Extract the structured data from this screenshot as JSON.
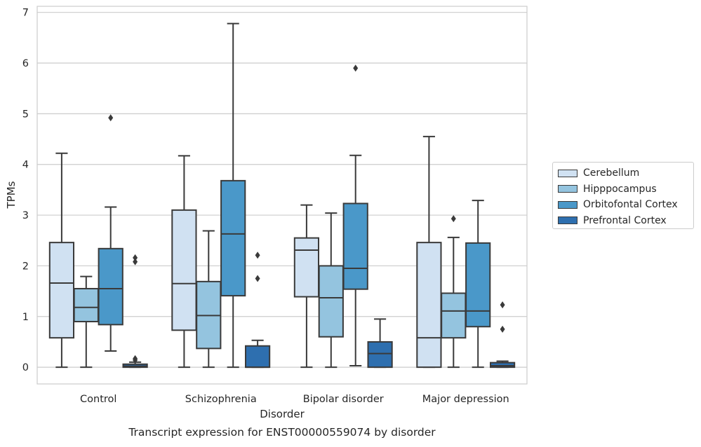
{
  "chart_data": {
    "type": "boxplot",
    "caption": "Transcript expression for ENST00000559074 by disorder",
    "xlabel": "Disorder",
    "ylabel": "TPMs",
    "ylim": [
      -0.33,
      7.12
    ],
    "yticks": [
      "0",
      "1",
      "2",
      "3",
      "4",
      "5",
      "6",
      "7"
    ],
    "ytick_values": [
      0,
      1,
      2,
      3,
      4,
      5,
      6,
      7
    ],
    "grid": "horizontal",
    "legend_position": "right",
    "categories": [
      "Control",
      "Schizophrenia",
      "Bipolar disorder",
      "Major depression"
    ],
    "series": [
      {
        "name": "Cerebellum",
        "color": "#d0e1f2",
        "boxes": [
          {
            "whislo": 0.0,
            "q1": 0.58,
            "med": 1.66,
            "q3": 2.46,
            "whishi": 4.22,
            "fliers": []
          },
          {
            "whislo": 0.0,
            "q1": 0.73,
            "med": 1.65,
            "q3": 3.1,
            "whishi": 4.17,
            "fliers": []
          },
          {
            "whislo": 0.0,
            "q1": 1.39,
            "med": 2.31,
            "q3": 2.55,
            "whishi": 3.2,
            "fliers": []
          },
          {
            "whislo": 0.0,
            "q1": 0.0,
            "med": 0.58,
            "q3": 2.46,
            "whishi": 4.55,
            "fliers": []
          }
        ]
      },
      {
        "name": "Hipppocampus",
        "color": "#94c4df",
        "boxes": [
          {
            "whislo": 0.0,
            "q1": 0.9,
            "med": 1.18,
            "q3": 1.55,
            "whishi": 1.79,
            "fliers": []
          },
          {
            "whislo": 0.0,
            "q1": 0.37,
            "med": 1.02,
            "q3": 1.69,
            "whishi": 2.69,
            "fliers": []
          },
          {
            "whislo": 0.0,
            "q1": 0.6,
            "med": 1.37,
            "q3": 2.0,
            "whishi": 3.04,
            "fliers": []
          },
          {
            "whislo": 0.0,
            "q1": 0.58,
            "med": 1.11,
            "q3": 1.46,
            "whishi": 2.56,
            "fliers": [
              2.93
            ]
          }
        ]
      },
      {
        "name": "Orbitofontal Cortex",
        "color": "#4a98c9",
        "boxes": [
          {
            "whislo": 0.32,
            "q1": 0.84,
            "med": 1.55,
            "q3": 2.34,
            "whishi": 3.16,
            "fliers": [
              4.92
            ]
          },
          {
            "whislo": 0.0,
            "q1": 1.41,
            "med": 2.63,
            "q3": 3.68,
            "whishi": 6.78,
            "fliers": []
          },
          {
            "whislo": 0.03,
            "q1": 1.54,
            "med": 1.95,
            "q3": 3.23,
            "whishi": 4.18,
            "fliers": [
              5.9
            ]
          },
          {
            "whislo": 0.0,
            "q1": 0.8,
            "med": 1.11,
            "q3": 2.45,
            "whishi": 3.29,
            "fliers": []
          }
        ]
      },
      {
        "name": "Prefrontal Cortex",
        "color": "#2e6faf",
        "boxes": [
          {
            "whislo": 0.0,
            "q1": 0.0,
            "med": 0.02,
            "q3": 0.06,
            "whishi": 0.1,
            "fliers": [
              2.16,
              2.08,
              0.17,
              0.14
            ]
          },
          {
            "whislo": 0.0,
            "q1": 0.0,
            "med": 0.0,
            "q3": 0.42,
            "whishi": 0.53,
            "fliers": [
              2.21,
              1.75
            ]
          },
          {
            "whislo": 0.0,
            "q1": 0.0,
            "med": 0.27,
            "q3": 0.5,
            "whishi": 0.95,
            "fliers": []
          },
          {
            "whislo": 0.0,
            "q1": 0.0,
            "med": 0.03,
            "q3": 0.09,
            "whishi": 0.12,
            "fliers": [
              1.23,
              0.75
            ]
          }
        ]
      }
    ]
  }
}
